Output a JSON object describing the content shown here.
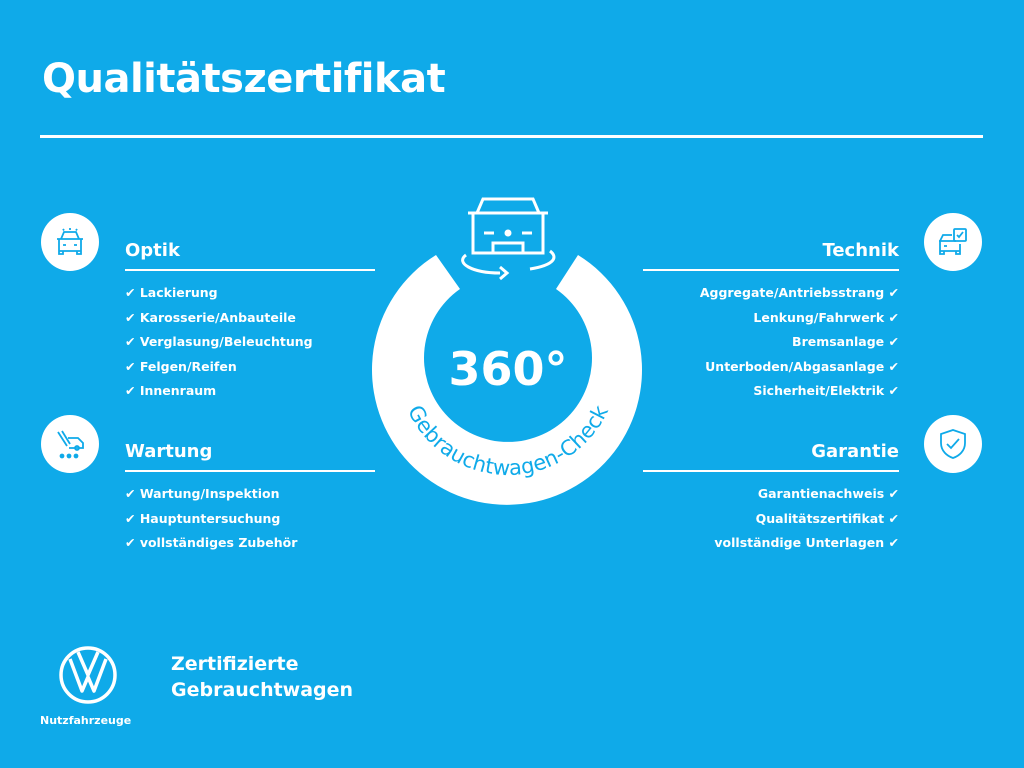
{
  "title": "Qualitätszertifikat",
  "center": {
    "big": "360°",
    "arc": "Gebrauchtwagen-Check"
  },
  "sections": {
    "optik": {
      "title": "Optik",
      "icon": "car-front-icon",
      "items": [
        "✔ Lackierung",
        "✔ Karosserie/Anbauteile",
        "✔ Verglasung/Beleuchtung",
        "✔ Felgen/Reifen",
        "✔ Innenraum"
      ]
    },
    "wartung": {
      "title": "Wartung",
      "icon": "service-tools-icon",
      "items": [
        "✔ Wartung/Inspektion",
        "✔ Hauptuntersuchung",
        "✔ vollständiges Zubehör"
      ]
    },
    "technik": {
      "title": "Technik",
      "icon": "car-checklist-icon",
      "items": [
        "Aggregate/Antriebsstrang ✔",
        "Lenkung/Fahrwerk ✔",
        "Bremsanlage ✔",
        "Unterboden/Abgasanlage ✔",
        "Sicherheit/Elektrik ✔"
      ]
    },
    "garantie": {
      "title": "Garantie",
      "icon": "shield-check-icon",
      "items": [
        "Garantienachweis ✔",
        "Qualitätszertifikat ✔",
        "vollständige Unterlagen ✔"
      ]
    }
  },
  "footer": {
    "line1": "Zertifizierte",
    "line2": "Gebrauchtwagen",
    "brand": "Nutzfahrzeuge"
  },
  "colors": {
    "background": "#0faae9",
    "foreground": "#ffffff"
  }
}
